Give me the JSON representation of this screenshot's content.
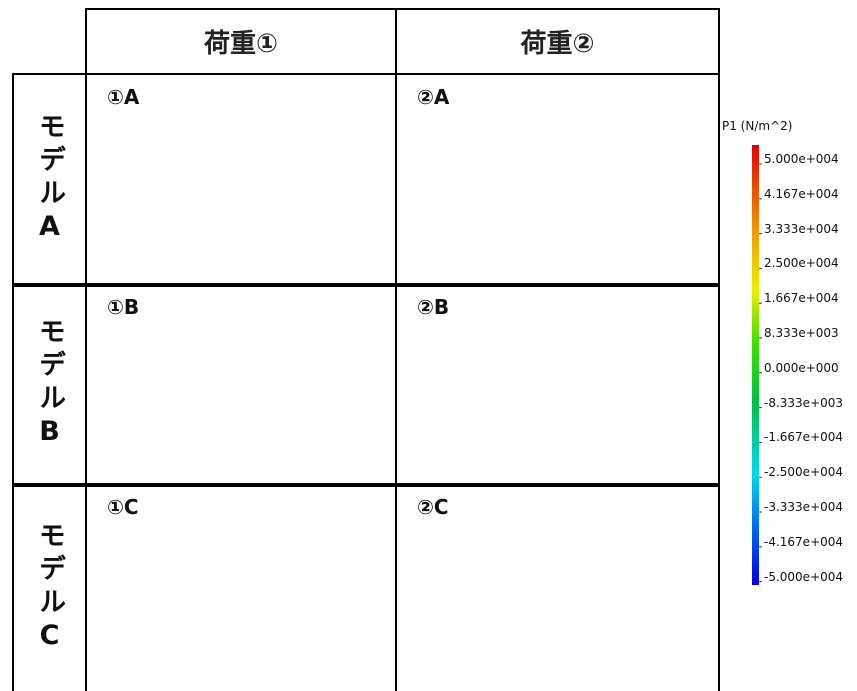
{
  "table": {
    "header": [
      "荷重①",
      "荷重②"
    ],
    "rows": [
      {
        "label": "モデルA",
        "cells": [
          "①A",
          "②A"
        ]
      },
      {
        "label": "モデルB",
        "cells": [
          "①B",
          "②B"
        ]
      },
      {
        "label": "モデルC",
        "cells": [
          "①C",
          "②C"
        ]
      }
    ]
  },
  "legend": {
    "title": "P1 (N/m^2)",
    "labels": [
      "5.000e+004",
      "4.167e+004",
      "3.333e+004",
      "2.500e+004",
      "1.667e+004",
      "8.333e+003",
      "0.000e+000",
      "-8.333e+003",
      "-1.667e+004",
      "-2.500e+004",
      "-3.333e+004",
      "-4.167e+004",
      "-5.000e+004"
    ]
  }
}
